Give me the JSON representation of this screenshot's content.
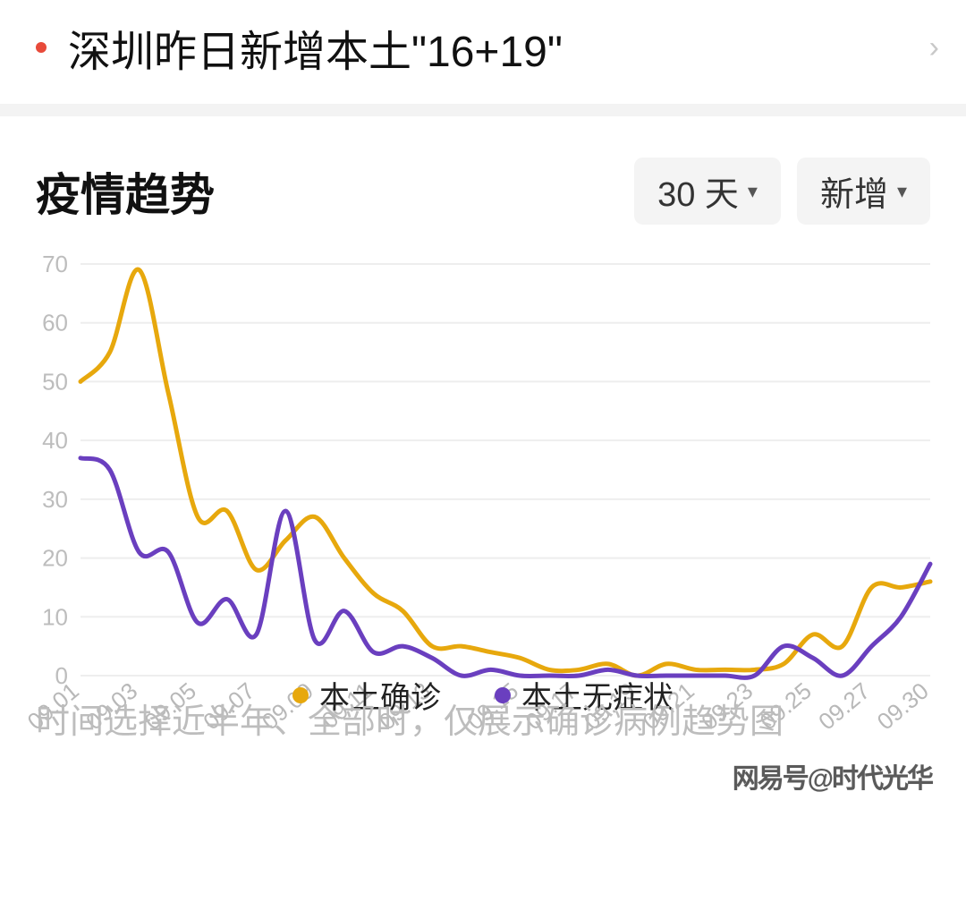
{
  "news": {
    "bullet_color": "#e84a3a",
    "title": "深圳昨日新增本土\"16+19\""
  },
  "section": {
    "title": "疫情趋势",
    "range_label": "30 天",
    "metric_label": "新增"
  },
  "chart": {
    "type": "line",
    "background_color": "#ffffff",
    "grid_color": "#eeeeee",
    "axis_label_color": "#bdbdbd",
    "axis_fontsize": 26,
    "ylim": [
      0,
      70
    ],
    "ytick_step": 10,
    "x_labels": [
      "09.01",
      "09.03",
      "09.05",
      "09.07",
      "09.09",
      "09.11",
      "09.13",
      "09.15",
      "09.17",
      "09.19",
      "09.21",
      "09.23",
      "09.25",
      "09.27",
      "09.30"
    ],
    "x_label_rotation_deg": -40,
    "line_width": 5,
    "series": [
      {
        "name": "本土确诊",
        "color": "#e7a80d",
        "values": [
          50,
          55,
          69,
          48,
          27,
          28,
          18,
          23,
          27,
          20,
          14,
          11,
          5,
          5,
          4,
          3,
          1,
          1,
          2,
          0,
          2,
          1,
          1,
          1,
          2,
          7,
          5,
          15,
          15,
          16
        ]
      },
      {
        "name": "本土无症状",
        "color": "#6a3fbf",
        "values": [
          37,
          35,
          21,
          21,
          9,
          13,
          7,
          28,
          6,
          11,
          4,
          5,
          3,
          0,
          1,
          0,
          0,
          0,
          1,
          0,
          0,
          0,
          0,
          0,
          5,
          3,
          0,
          5,
          10,
          19
        ]
      }
    ]
  },
  "legend": [
    {
      "label": "本土确诊",
      "color": "#e7a80d"
    },
    {
      "label": "本土无症状",
      "color": "#6a3fbf"
    }
  ],
  "note_text": "时间选择近半年、全部时，仅展示确诊病例趋势图",
  "watermark_text": "网易号@时代光华"
}
